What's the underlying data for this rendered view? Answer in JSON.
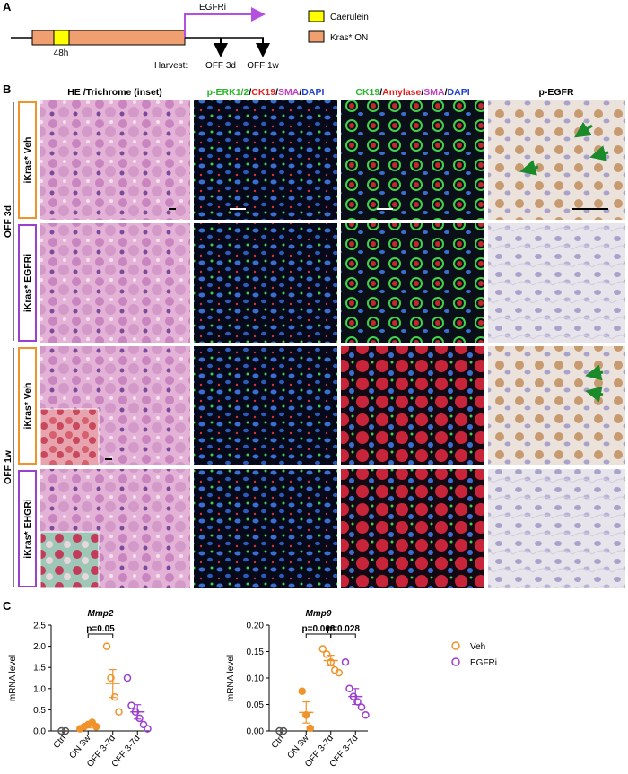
{
  "panel_a": {
    "label": "A",
    "drug": "EGFRi",
    "duration": "48h",
    "harvest": "Harvest:",
    "timepoints": [
      "OFF 3d",
      "OFF 1w"
    ],
    "legend": [
      "Caerulein",
      "Kras* ON"
    ]
  },
  "panel_b": {
    "label": "B",
    "columns": [
      "HE /Trichrome (inset)",
      [
        "p-ERK1/2",
        "/",
        "CK19",
        "/",
        "SMA",
        "/",
        "DAPI"
      ],
      [
        "CK19",
        "/",
        "Amylase",
        "/",
        "SMA",
        "/",
        "DAPI"
      ],
      "p-EGFR"
    ],
    "rows": [
      {
        "timepoint": "OFF 3d",
        "labels": [
          "iKras* Veh",
          "iKras* EGFRi"
        ]
      },
      {
        "timepoint": "OFF 1w",
        "labels": [
          "iKras* Veh",
          "iKras* EHGRi"
        ]
      }
    ]
  },
  "panel_c": {
    "label": "C",
    "legend": [
      {
        "name": "Veh",
        "color": "#f0932a"
      },
      {
        "name": "EGFRi",
        "color": "#9b3fcf"
      }
    ]
  },
  "chart_data": [
    {
      "type": "dotplot",
      "title": "Mmp2",
      "y_label": "mRNA level",
      "categories": [
        "Ctrl",
        "ON 3w",
        "OFF 3-7d",
        "OFF 3-7d"
      ],
      "colors": [
        "#555555",
        "#f0932a",
        "#f0932a",
        "#9b3fcf"
      ],
      "filled": [
        false,
        true,
        false,
        false
      ],
      "points": [
        [
          0,
          0
        ],
        [
          0.05,
          0.1,
          0.15,
          0.2,
          0.1
        ],
        [
          2.0,
          1.25,
          0.8,
          0.45
        ],
        [
          1.25,
          0.6,
          0.45,
          0.3,
          0.15,
          0.05
        ]
      ],
      "means": [
        0,
        0.12,
        1.12,
        0.45
      ],
      "errors": [
        0,
        0.05,
        0.33,
        0.17
      ],
      "pvalues": [
        null,
        "p=0.05",
        null
      ],
      "ylim": [
        0,
        2.5
      ],
      "yticks": [
        {
          "value": 0,
          "label": "0.0"
        },
        0.5,
        {
          "value": 1,
          "label": "1.0"
        },
        1.5,
        {
          "value": 2,
          "label": "2.0"
        },
        2.5
      ]
    },
    {
      "type": "dotplot",
      "title": "Mmp9",
      "y_label": "mRNA level",
      "categories": [
        "Ctrl",
        "ON 3w",
        "OFF 3-7d",
        "OFF 3-7d"
      ],
      "colors": [
        "#555555",
        "#f0932a",
        "#f0932a",
        "#9b3fcf"
      ],
      "filled": [
        false,
        true,
        false,
        false
      ],
      "points": [
        [
          0,
          0
        ],
        [
          0.075,
          0.03,
          0.005
        ],
        [
          0.155,
          0.145,
          0.13,
          0.115,
          0.11
        ],
        [
          0.13,
          0.08,
          0.065,
          0.055,
          0.045,
          0.03
        ]
      ],
      "means": [
        0,
        0.035,
        0.133,
        0.065
      ],
      "errors": [
        0,
        0.02,
        0.01,
        0.015
      ],
      "pvalues": [
        null,
        "p=0.008",
        "p=0.028"
      ],
      "ylim": [
        0,
        0.2
      ],
      "yticks": [
        {
          "value": 0,
          "label": "0.00"
        },
        0.05,
        {
          "value": 0.1,
          "label": "0.10"
        },
        0.15,
        {
          "value": 0.2,
          "label": "0.20"
        }
      ]
    }
  ]
}
